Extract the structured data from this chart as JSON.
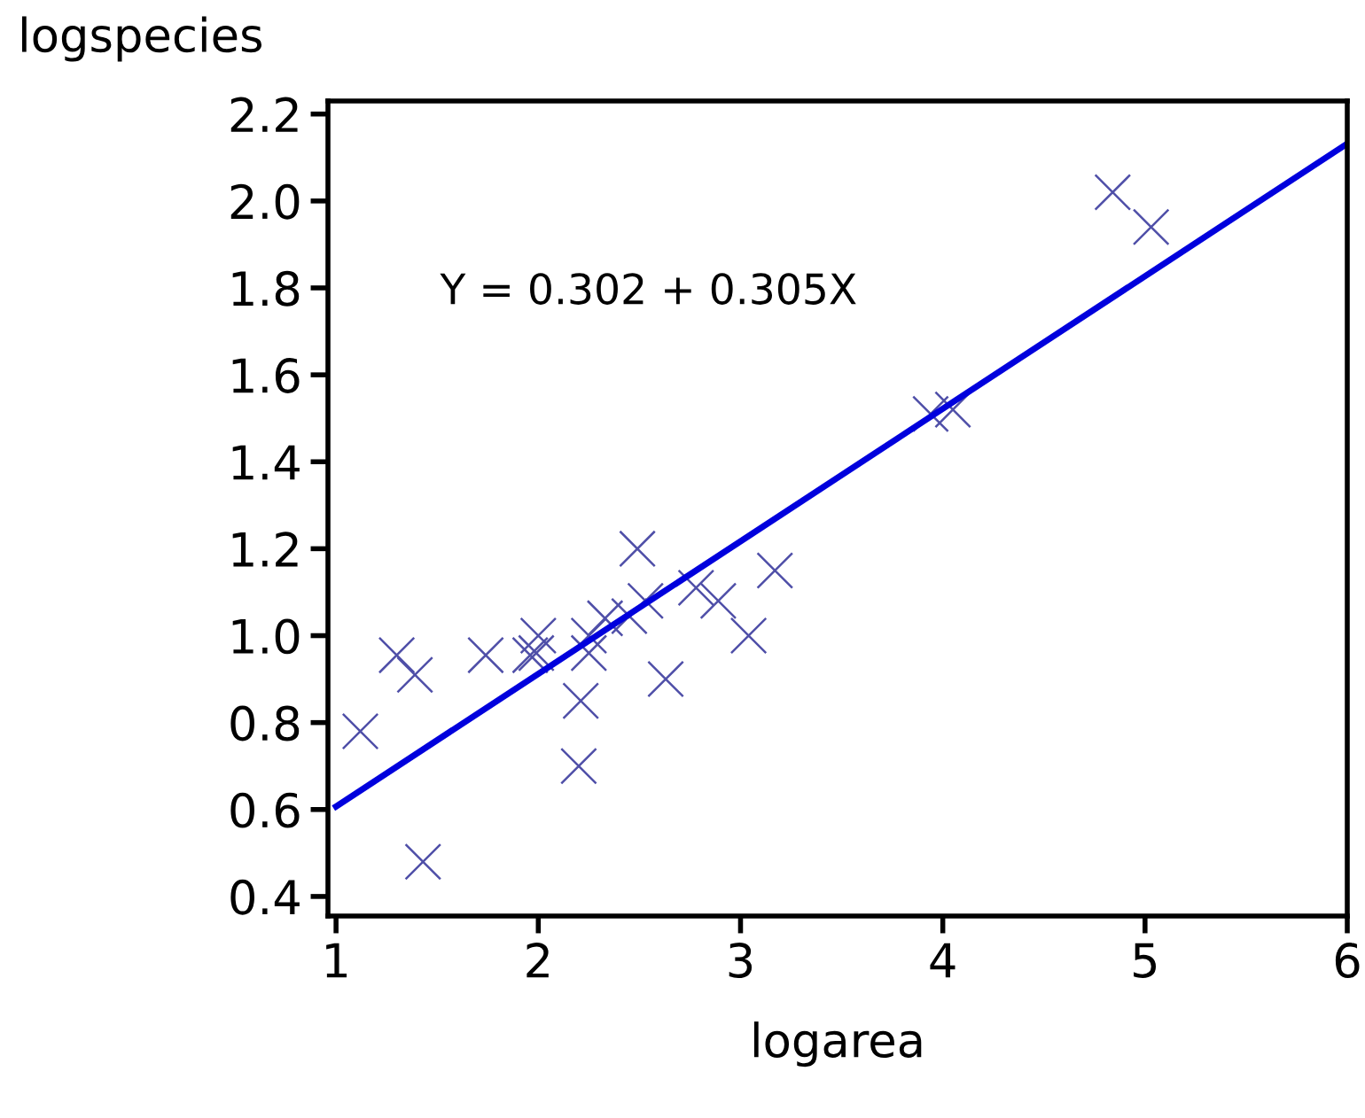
{
  "chart_data": {
    "type": "scatter",
    "xlabel": "logarea",
    "ylabel": "logspecies",
    "xlim": [
      0.96,
      6.0
    ],
    "ylim": [
      0.355,
      2.23
    ],
    "xticks": [
      1,
      2,
      3,
      4,
      5,
      6
    ],
    "yticks": [
      {
        "value": 0.4,
        "label": "0.4"
      },
      {
        "value": 0.6,
        "label": "0.6"
      },
      {
        "value": 0.8,
        "label": "0.8"
      },
      {
        "value": 1.0,
        "label": "1.0"
      },
      {
        "value": 1.2,
        "label": "1.2"
      },
      {
        "value": 1.4,
        "label": "1.4"
      },
      {
        "value": 1.6,
        "label": "1.6"
      },
      {
        "value": 1.8,
        "label": "1.8"
      },
      {
        "value": 2.0,
        "label": "2.0"
      },
      {
        "value": 2.2,
        "label": "2.2"
      }
    ],
    "grid": false,
    "legend": false,
    "annotations": [
      "Y = 0.302 + 0.305X"
    ],
    "series": [
      {
        "color": "#4f4fa8",
        "marker": "cross",
        "x": [
          1.12,
          1.3,
          1.39,
          1.43,
          1.74,
          1.96,
          1.99,
          2.0,
          2.2,
          2.21,
          2.25,
          2.25,
          2.33,
          2.45,
          2.49,
          2.53,
          2.63,
          2.78,
          2.89,
          3.04,
          3.17,
          3.94,
          4.05,
          4.84,
          5.03
        ],
        "values": [
          0.78,
          0.955,
          0.91,
          0.48,
          0.955,
          0.955,
          0.96,
          1.0,
          0.7,
          0.85,
          0.96,
          1.0,
          1.04,
          1.045,
          1.2,
          1.08,
          0.9,
          1.11,
          1.08,
          1.0,
          1.15,
          1.51,
          1.52,
          2.02,
          1.94
        ]
      },
      {
        "type": "line",
        "color": "#0000dd",
        "marker": "none",
        "line_style": "solid",
        "x": [
          1,
          6
        ],
        "values": [
          0.607,
          2.132
        ]
      }
    ]
  }
}
